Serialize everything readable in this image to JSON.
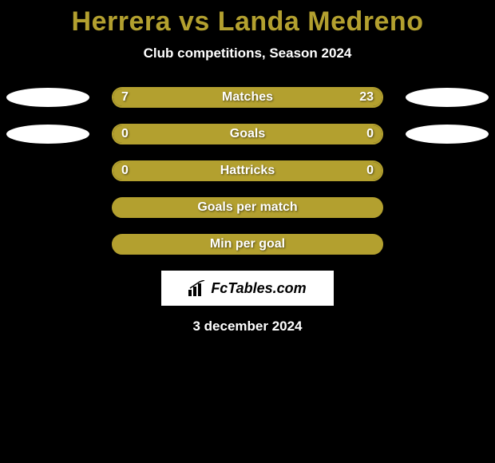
{
  "title": "Herrera vs Landa Medreno",
  "subtitle": "Club competitions, Season 2024",
  "date": "3 december 2024",
  "colors": {
    "accent": "#b3a02f",
    "bg": "#000000",
    "ellipse": "#ffffff",
    "text": "#ffffff"
  },
  "logo": {
    "text": "FcTables.com",
    "icon": "bar-chart-icon",
    "bg": "#ffffff",
    "text_color": "#000000"
  },
  "track_width": 340,
  "rows": [
    {
      "label": "Matches",
      "left_value": "7",
      "right_value": "23",
      "left_num": 7,
      "right_num": 23,
      "left_fill_pct": 23.3,
      "right_fill_pct": 76.7,
      "fill_color": "#b3a02f",
      "border_color": "#b3a02f",
      "show_ellipses": true
    },
    {
      "label": "Goals",
      "left_value": "0",
      "right_value": "0",
      "left_num": 0,
      "right_num": 0,
      "left_fill_pct": 50,
      "right_fill_pct": 50,
      "fill_color": "#b3a02f",
      "border_color": "#b3a02f",
      "show_ellipses": true
    },
    {
      "label": "Hattricks",
      "left_value": "0",
      "right_value": "0",
      "left_num": 0,
      "right_num": 0,
      "left_fill_pct": 50,
      "right_fill_pct": 50,
      "fill_color": "#b3a02f",
      "border_color": "#b3a02f",
      "show_ellipses": false
    },
    {
      "label": "Goals per match",
      "left_value": "",
      "right_value": "",
      "left_num": null,
      "right_num": null,
      "left_fill_pct": 0,
      "right_fill_pct": 0,
      "fill_color": "#b3a02f",
      "border_color": "#b3a02f",
      "show_ellipses": false,
      "empty": true
    },
    {
      "label": "Min per goal",
      "left_value": "",
      "right_value": "",
      "left_num": null,
      "right_num": null,
      "left_fill_pct": 0,
      "right_fill_pct": 0,
      "fill_color": "#b3a02f",
      "border_color": "#b3a02f",
      "show_ellipses": false,
      "empty": true
    }
  ]
}
